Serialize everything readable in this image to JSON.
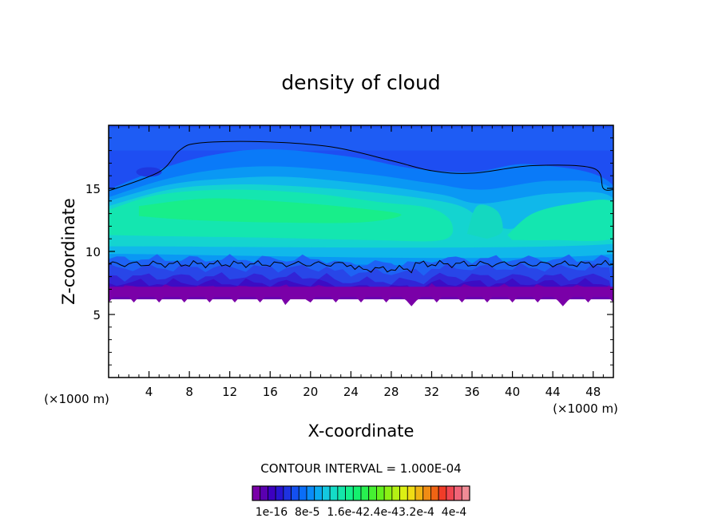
{
  "chart_data": {
    "type": "heatmap",
    "title": "density of cloud",
    "xlabel": "X-coordinate",
    "ylabel": "Z-coordinate",
    "x_unit_left": "(×1000 m)",
    "x_unit_right": "(×1000 m)",
    "xlim": [
      0,
      50
    ],
    "ylim": [
      0,
      20
    ],
    "xticks": [
      "4",
      "8",
      "12",
      "16",
      "20",
      "24",
      "28",
      "32",
      "36",
      "40",
      "44",
      "48"
    ],
    "yticks": [
      "5",
      "10",
      "15"
    ],
    "contour_interval_text": "CONTOUR INTERVAL = 1.000E-04",
    "colorbar": {
      "tick_labels": [
        "1e-16",
        "8e-5",
        "1.6e-4",
        "2.4e-4",
        "3.2e-4",
        "4e-4"
      ],
      "label_text": "1e-16  8e-5  1.6e-42.4e-43.2e-4  4e-4",
      "colors": [
        "#7a00a8",
        "#5a00b0",
        "#3c00c0",
        "#2814d0",
        "#1e32e0",
        "#1450f0",
        "#0a6ef8",
        "#0a8cf8",
        "#0aaaf0",
        "#14c8e0",
        "#14dcc8",
        "#14e6aa",
        "#14f08c",
        "#14f06e",
        "#28f050",
        "#46f032",
        "#64f01e",
        "#8cf014",
        "#b4f014",
        "#dcf014",
        "#f0dc14",
        "#f0b414",
        "#f08c14",
        "#f06414",
        "#f03c28",
        "#f04650",
        "#f06478",
        "#f08c96"
      ]
    },
    "cloud_layer": {
      "base_z_approx": 6.5,
      "top_z_approx": 19.5,
      "peak_value_region_z": [
        12,
        15
      ]
    }
  }
}
